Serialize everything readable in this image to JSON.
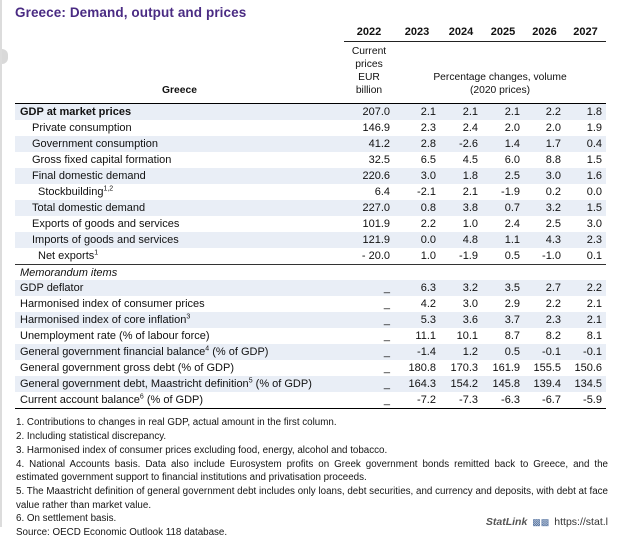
{
  "title": "Greece: Demand, output and prices",
  "table": {
    "country_label": "Greece",
    "years": [
      "2022",
      "2023",
      "2024",
      "2025",
      "2026",
      "2027"
    ],
    "col1_sub_line1": "Current prices",
    "col1_sub_line2": "EUR billion",
    "rest_sub_line1": "Percentage changes, volume",
    "rest_sub_line2": "(2020 prices)",
    "rows": [
      {
        "pre": "GDP at market prices",
        "sup": "",
        "post": "",
        "values": [
          "207.0",
          "2.1",
          "2.1",
          "2.1",
          "2.2",
          "1.8"
        ]
      },
      {
        "pre": "Private consumption",
        "sup": "",
        "post": "",
        "values": [
          "146.9",
          "2.3",
          "2.4",
          "2.0",
          "2.0",
          "1.9"
        ]
      },
      {
        "pre": "Government consumption",
        "sup": "",
        "post": "",
        "values": [
          "41.2",
          "2.8",
          "-2.6",
          "1.4",
          "1.7",
          "0.4"
        ]
      },
      {
        "pre": "Gross fixed capital formation",
        "sup": "",
        "post": "",
        "values": [
          "32.5",
          "6.5",
          "4.5",
          "6.0",
          "8.8",
          "1.5"
        ]
      },
      {
        "pre": "Final domestic demand",
        "sup": "",
        "post": "",
        "values": [
          "220.6",
          "3.0",
          "1.8",
          "2.5",
          "3.0",
          "1.6"
        ]
      },
      {
        "pre": "Stockbuilding",
        "sup": "1,2",
        "post": "",
        "values": [
          "6.4",
          "-2.1",
          "2.1",
          "-1.9",
          "0.2",
          "0.0"
        ]
      },
      {
        "pre": "Total domestic demand",
        "sup": "",
        "post": "",
        "values": [
          "227.0",
          "0.8",
          "3.8",
          "0.7",
          "3.2",
          "1.5"
        ]
      },
      {
        "pre": "Exports of goods and services",
        "sup": "",
        "post": "",
        "values": [
          "101.9",
          "2.2",
          "1.0",
          "2.4",
          "2.5",
          "3.0"
        ]
      },
      {
        "pre": "Imports of goods and services",
        "sup": "",
        "post": "",
        "values": [
          "121.9",
          "0.0",
          "4.8",
          "1.1",
          "4.3",
          "2.3"
        ]
      },
      {
        "pre": "Net exports",
        "sup": "1",
        "post": "",
        "values": [
          "- 20.0",
          "1.0",
          "-1.9",
          "0.5",
          "-1.0",
          "0.1"
        ]
      },
      {
        "pre": "Memorandum items",
        "sup": "",
        "post": ""
      },
      {
        "pre": "GDP deflator",
        "sup": "",
        "post": "",
        "values": [
          "_",
          "6.3",
          "3.2",
          "3.5",
          "2.7",
          "2.2"
        ]
      },
      {
        "pre": "Harmonised index of consumer prices",
        "sup": "",
        "post": "",
        "values": [
          "_",
          "4.2",
          "3.0",
          "2.9",
          "2.2",
          "2.1"
        ]
      },
      {
        "pre": "Harmonised index of core inflation",
        "sup": "3",
        "post": "",
        "values": [
          "_",
          "5.3",
          "3.6",
          "3.7",
          "2.3",
          "2.1"
        ]
      },
      {
        "pre": "Unemployment rate (% of labour force)",
        "sup": "",
        "post": "",
        "values": [
          "_",
          "11.1",
          "10.1",
          "8.7",
          "8.2",
          "8.1"
        ]
      },
      {
        "pre": "General government financial balance",
        "sup": "4",
        "post": " (% of GDP)",
        "values": [
          "_",
          "-1.4",
          "1.2",
          "0.5",
          "-0.1",
          "-0.1"
        ]
      },
      {
        "pre": "General government gross debt (% of GDP)",
        "sup": "",
        "post": "",
        "values": [
          "_",
          "180.8",
          "170.3",
          "161.9",
          "155.5",
          "150.6"
        ]
      },
      {
        "pre": "General government debt, Maastricht definition",
        "sup": "5",
        "post": " (% of GDP)",
        "values": [
          "_",
          "164.3",
          "154.2",
          "145.8",
          "139.4",
          "134.5"
        ]
      },
      {
        "pre": "Current account balance",
        "sup": "6",
        "post": " (% of GDP)",
        "values": [
          "_",
          "-7.2",
          "-7.3",
          "-6.3",
          "-6.7",
          "-5.9"
        ]
      }
    ]
  },
  "footnotes": [
    "1. Contributions to changes in real GDP, actual amount in the first column.",
    "2. Including statistical discrepancy.",
    "3. Harmonised index of consumer prices excluding food, energy, alcohol and tobacco.",
    "4. National Accounts basis. Data also include Eurosystem profits on Greek government bonds remitted back to Greece, and the estimated government support to financial institutions and privatisation proceeds.",
    "5. The Maastricht definition of general government debt includes only loans, debt securities, and currency and deposits, with debt at face value rather than market value.",
    "6. On settlement basis."
  ],
  "source": "Source: OECD Economic Outlook 118 database.",
  "statlink": {
    "label": "StatLink",
    "url_text": "https://stat.l"
  },
  "colors": {
    "title_purple": "#4a2b83",
    "row_shade": "#e9eef6"
  }
}
